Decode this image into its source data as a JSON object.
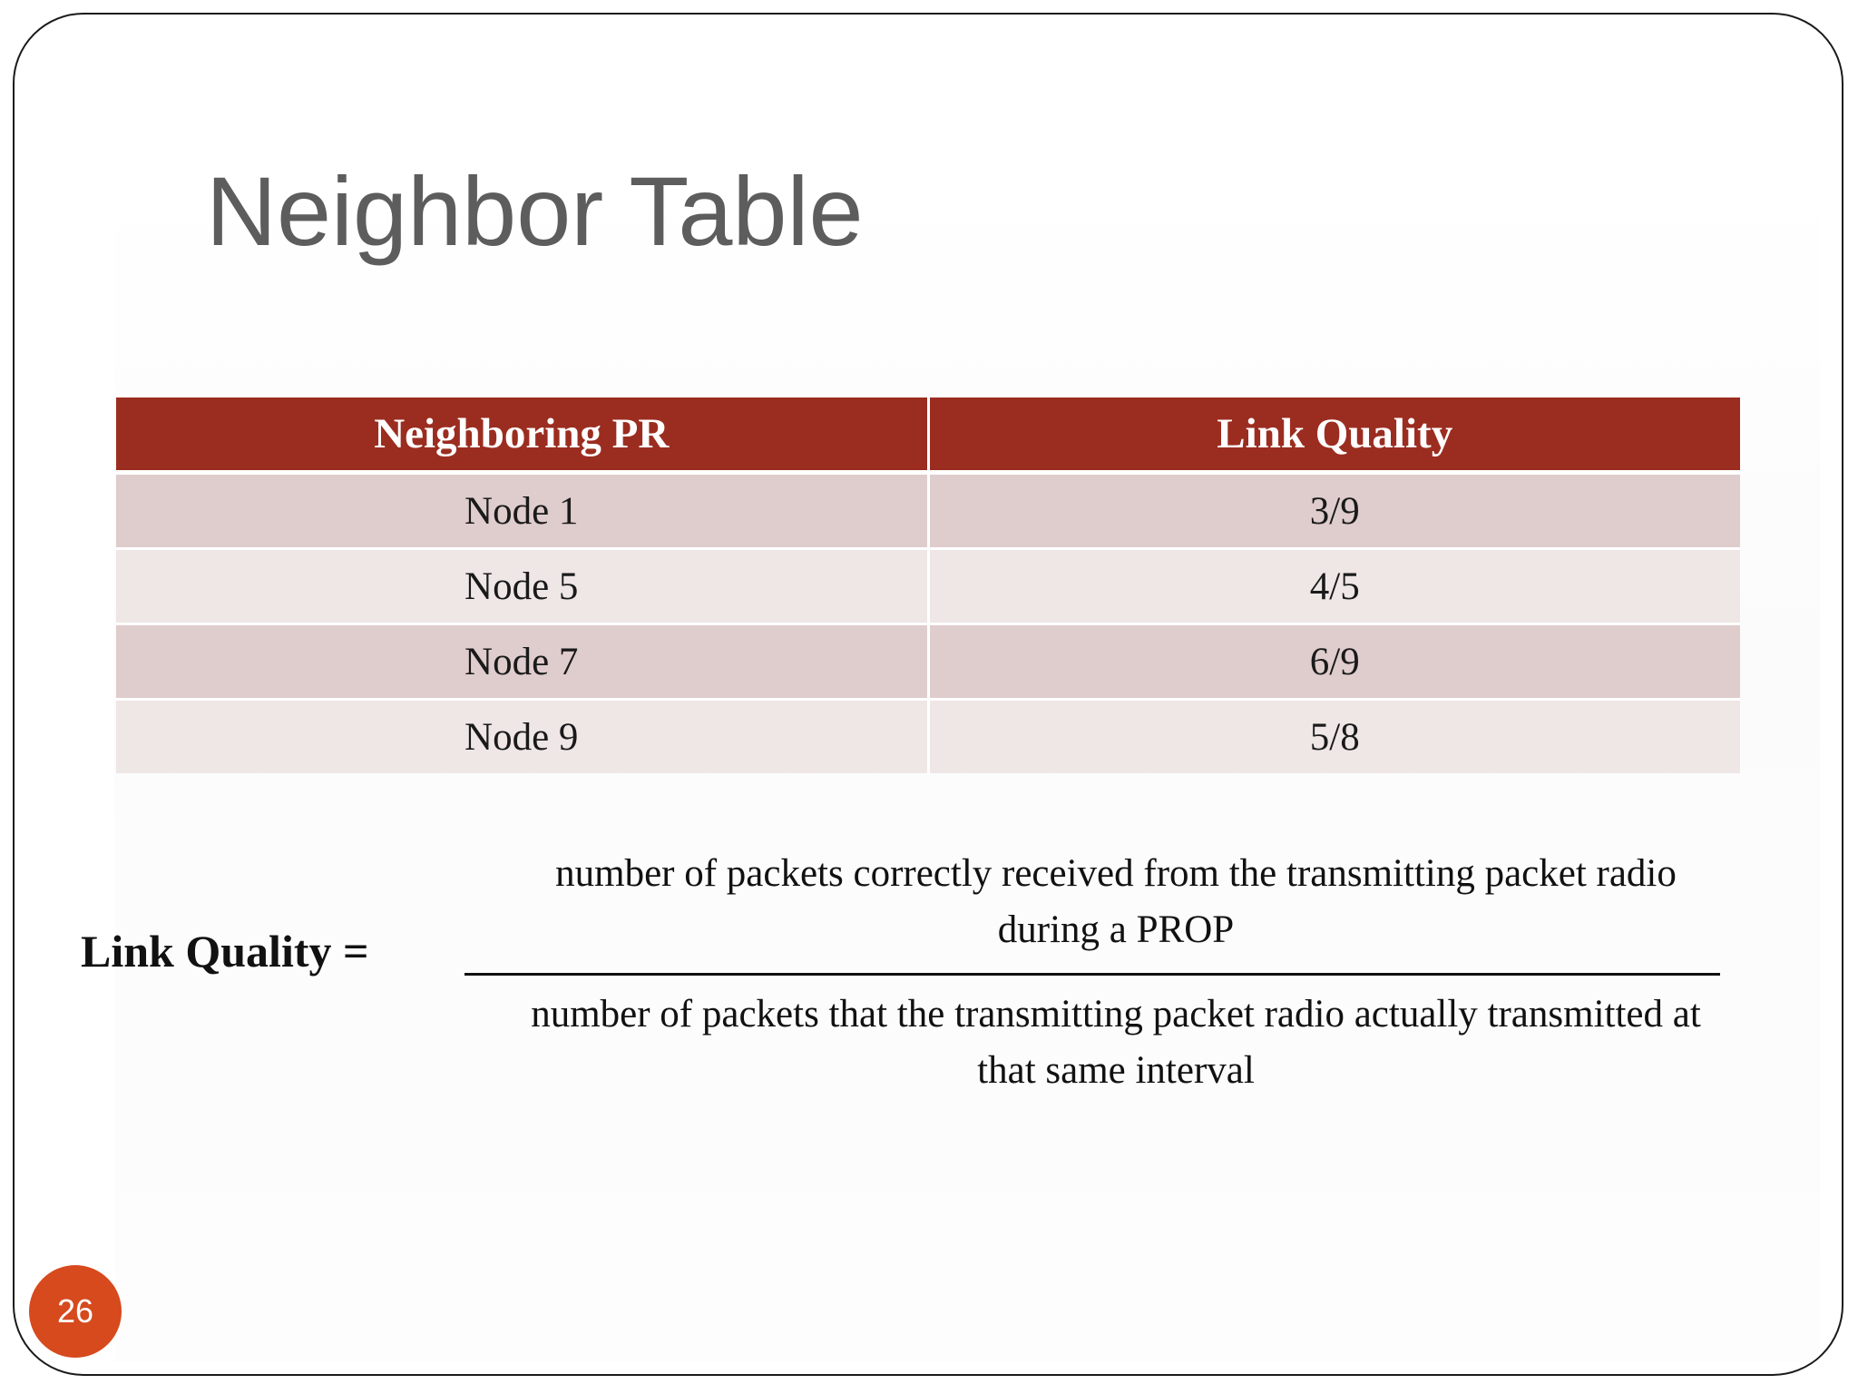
{
  "slide": {
    "title": "Neighbor Table",
    "number": "26"
  },
  "table": {
    "headers": [
      "Neighboring PR",
      "Link Quality"
    ],
    "rows": [
      {
        "neighbor": "Node 1",
        "link_quality": "3/9"
      },
      {
        "neighbor": "Node 5",
        "link_quality": "4/5"
      },
      {
        "neighbor": "Node 7",
        "link_quality": "6/9"
      },
      {
        "neighbor": "Node 9",
        "link_quality": "5/8"
      }
    ]
  },
  "formula": {
    "label": "Link Quality =",
    "numerator_line1": "number of packets correctly received from the transmitting packet radio",
    "numerator_line2": "during a PROP",
    "denominator_line1": "number of packets that the transmitting packet radio actually transmitted at",
    "denominator_line2": "that same interval"
  },
  "colors": {
    "header_bg": "#9b2d20",
    "row_odd_bg": "#dfcccc",
    "row_even_bg": "#efe6e6",
    "slide_number_bg": "#d64a1e",
    "title_color": "#5d5d5d"
  }
}
